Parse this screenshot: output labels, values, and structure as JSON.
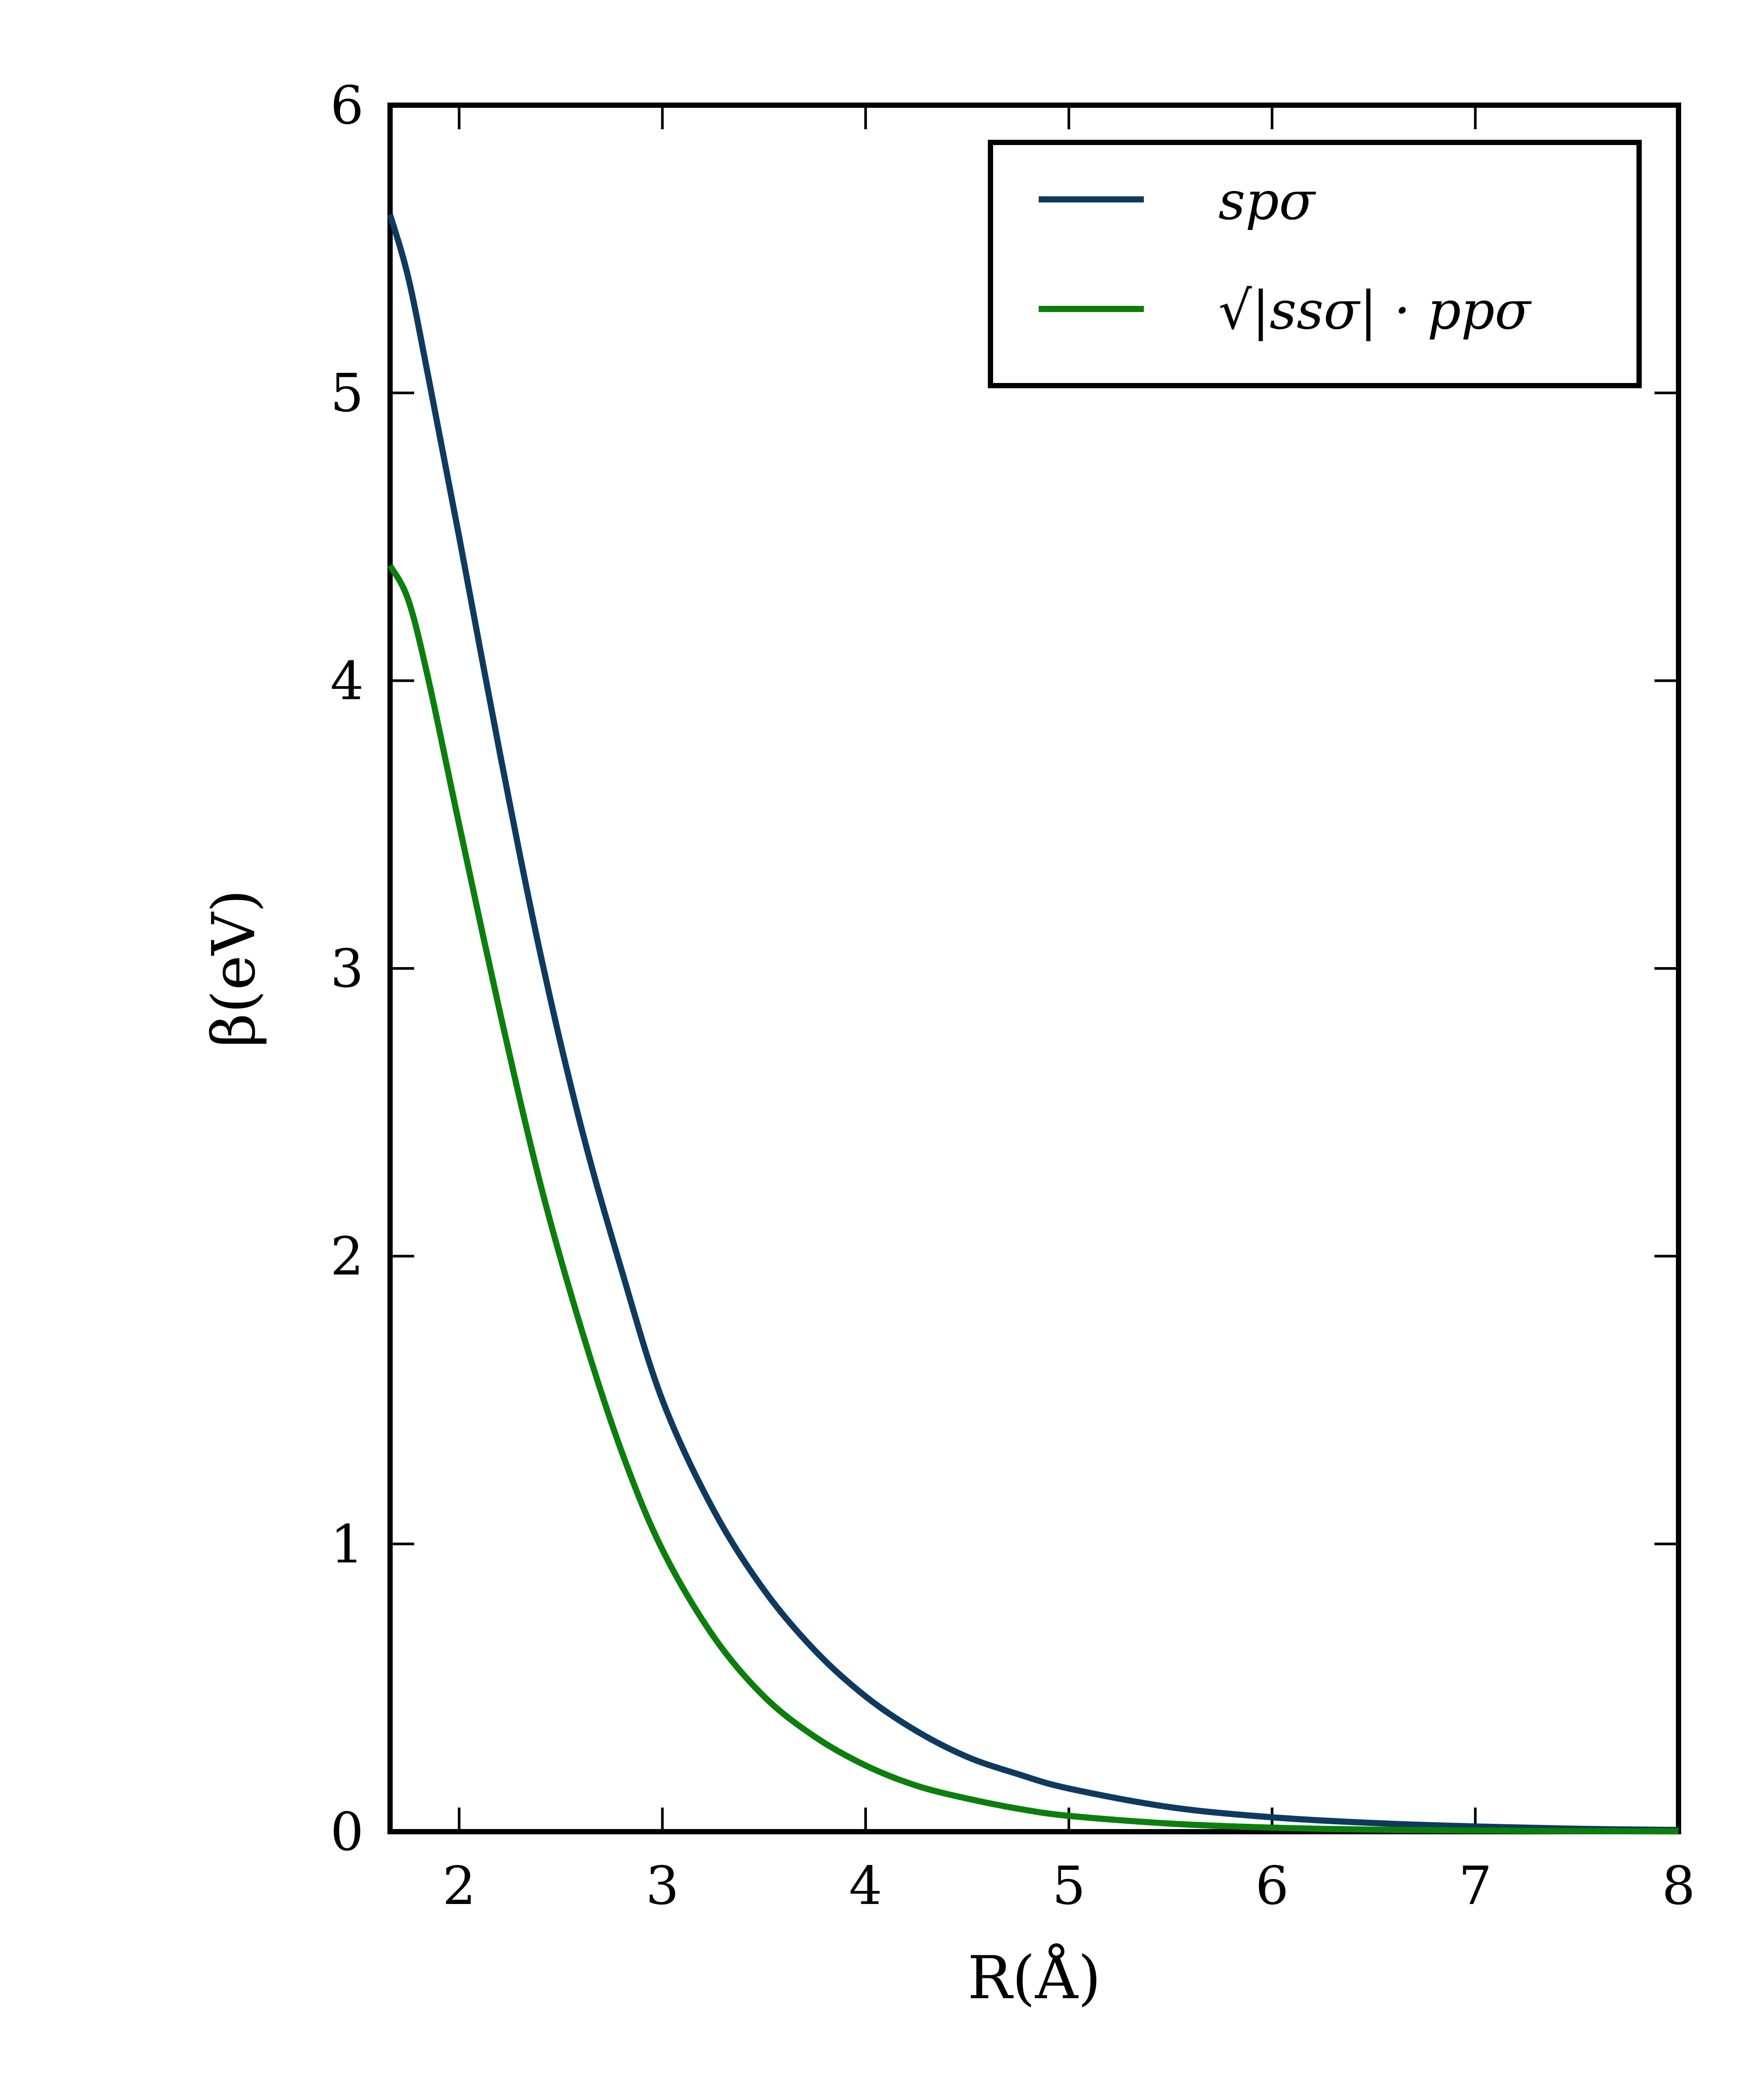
{
  "chart_data": {
    "type": "line",
    "xlabel": "R(Å)",
    "ylabel": "β(eV)",
    "xlim": [
      1.66,
      8
    ],
    "ylim": [
      0,
      6
    ],
    "xticks": [
      "2",
      "3",
      "4",
      "5",
      "6",
      "7",
      "8"
    ],
    "yticks": [
      "0",
      "1",
      "2",
      "3",
      "4",
      "5",
      "6"
    ],
    "grid": false,
    "legend_position": "top-right",
    "series": [
      {
        "name": "spσ",
        "color": "#0e3a5f",
        "x": [
          1.66,
          1.75,
          1.85,
          2.0,
          2.2,
          2.4,
          2.6,
          2.8,
          3.0,
          3.25,
          3.5,
          3.75,
          4.0,
          4.25,
          4.5,
          4.75,
          5.0,
          5.5,
          6.0,
          6.5,
          7.0,
          7.5,
          8.0
        ],
        "y": [
          5.62,
          5.4,
          5.05,
          4.5,
          3.75,
          3.05,
          2.45,
          1.95,
          1.5,
          1.12,
          0.84,
          0.63,
          0.47,
          0.35,
          0.26,
          0.2,
          0.15,
          0.085,
          0.05,
          0.03,
          0.018,
          0.01,
          0.006
        ]
      },
      {
        "name": "√|ssσ| · ppσ",
        "color": "#0b7f0b",
        "x": [
          1.66,
          1.75,
          1.85,
          2.0,
          2.2,
          2.4,
          2.6,
          2.8,
          3.0,
          3.25,
          3.5,
          3.75,
          4.0,
          4.25,
          4.5,
          4.75,
          5.0,
          5.5,
          6.0,
          6.5,
          7.0,
          7.5,
          8.0
        ],
        "y": [
          4.4,
          4.28,
          4.0,
          3.5,
          2.85,
          2.25,
          1.75,
          1.32,
          0.98,
          0.68,
          0.47,
          0.33,
          0.23,
          0.16,
          0.115,
          0.08,
          0.055,
          0.028,
          0.014,
          0.007,
          0.004,
          0.002,
          0.001
        ]
      }
    ]
  }
}
